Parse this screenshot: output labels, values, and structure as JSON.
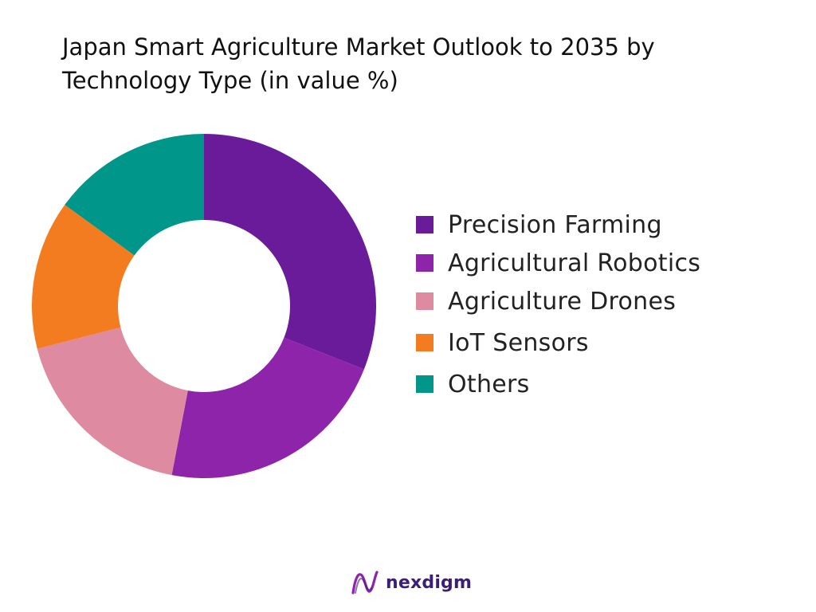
{
  "chart_data": {
    "type": "pie",
    "title": "Japan Smart Agriculture Market Outlook to 2035 by Technology Type (in value %)",
    "donut": true,
    "legend_position": "right",
    "categories": [
      "Precision Farming",
      "Agricultural Robotics",
      "Agriculture Drones",
      "IoT Sensors",
      "Others"
    ],
    "values": [
      31,
      22,
      18,
      14,
      15
    ],
    "colors": [
      "#6a1b9a",
      "#8e24aa",
      "#de8aa0",
      "#f47c20",
      "#00968a"
    ]
  },
  "brand": {
    "name": "nexdigm",
    "logo_colors": [
      "#8e24aa",
      "#3a1e77"
    ]
  }
}
